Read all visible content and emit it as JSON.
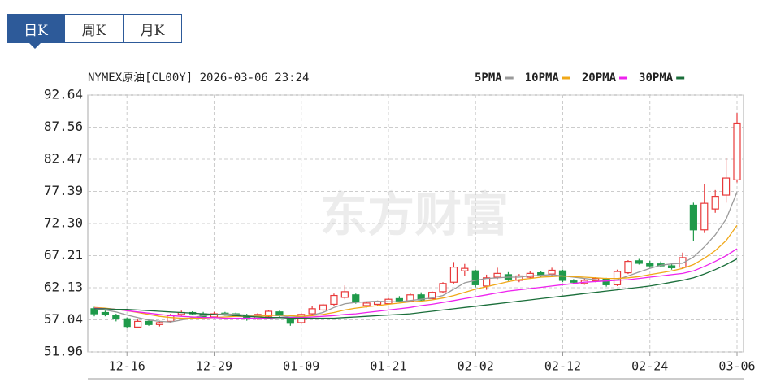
{
  "tabs": [
    "日K",
    "周K",
    "月K"
  ],
  "chart_data": {
    "type": "candlestick",
    "title": "NYMEX原油[CL00Y] 2026-03-06 23:24",
    "watermark": "东方财富",
    "categories": [
      null,
      null,
      null,
      "12-16",
      null,
      null,
      null,
      null,
      null,
      null,
      null,
      "12-29",
      null,
      null,
      null,
      null,
      null,
      null,
      null,
      "01-09",
      null,
      null,
      null,
      null,
      null,
      null,
      null,
      "01-21",
      null,
      null,
      null,
      null,
      null,
      null,
      null,
      "02-02",
      null,
      null,
      null,
      null,
      null,
      null,
      null,
      "02-12",
      null,
      null,
      null,
      null,
      null,
      null,
      null,
      "02-24",
      null,
      null,
      null,
      null,
      null,
      null,
      null,
      "03-06"
    ],
    "open": [
      58.8,
      58.2,
      57.8,
      57.2,
      55.9,
      56.8,
      56.3,
      56.8,
      57.9,
      58.2,
      58.0,
      57.5,
      58.1,
      58.0,
      57.7,
      57.2,
      57.6,
      58.3,
      57.2,
      56.6,
      58.0,
      58.6,
      59.5,
      60.6,
      61.0,
      59.3,
      59.5,
      59.6,
      60.4,
      60.0,
      61.0,
      60.4,
      61.5,
      63.0,
      64.8,
      64.8,
      62.4,
      63.8,
      64.2,
      63.3,
      63.8,
      64.5,
      64.3,
      64.8,
      63.2,
      62.8,
      63.2,
      63.5,
      62.6,
      64.5,
      66.4,
      66.0,
      65.9,
      65.6,
      65.4,
      75.2,
      71.3,
      74.6,
      76.8,
      79.2
    ],
    "high": [
      59.1,
      58.5,
      58.0,
      57.4,
      57.1,
      57.2,
      56.9,
      58.0,
      58.5,
      58.4,
      58.3,
      58.3,
      58.3,
      58.2,
      58.0,
      58.1,
      58.6,
      58.5,
      57.4,
      58.1,
      59.2,
      59.6,
      61.2,
      62.5,
      61.2,
      59.9,
      60.1,
      60.5,
      60.8,
      61.3,
      61.4,
      61.6,
      63.0,
      66.2,
      65.9,
      65.0,
      64.2,
      65.3,
      64.6,
      64.3,
      64.8,
      64.8,
      65.3,
      65.0,
      63.5,
      63.6,
      63.8,
      63.7,
      65.0,
      66.5,
      66.7,
      66.4,
      66.3,
      66.1,
      67.7,
      75.6,
      78.5,
      77.6,
      82.6,
      89.8
    ],
    "low": [
      57.6,
      57.6,
      56.8,
      55.8,
      55.7,
      56.1,
      56.0,
      56.6,
      57.7,
      57.8,
      57.2,
      57.3,
      57.7,
      57.5,
      56.9,
      57.0,
      57.4,
      57.5,
      56.1,
      56.4,
      57.8,
      58.3,
      59.3,
      60.3,
      59.6,
      59.0,
      59.2,
      59.4,
      59.8,
      59.9,
      60.0,
      60.2,
      61.3,
      62.8,
      64.0,
      62.2,
      61.8,
      63.5,
      63.2,
      63.0,
      63.6,
      63.8,
      64.0,
      63.0,
      62.7,
      62.6,
      63.0,
      62.3,
      62.4,
      64.3,
      65.8,
      65.3,
      65.4,
      65.0,
      65.1,
      69.5,
      70.8,
      74.0,
      75.6,
      78.8
    ],
    "close": [
      58.0,
      57.9,
      57.2,
      56.0,
      56.8,
      56.3,
      56.6,
      57.7,
      58.2,
      58.0,
      57.4,
      58.0,
      57.9,
      57.7,
      57.2,
      57.9,
      58.4,
      57.7,
      56.5,
      57.9,
      58.8,
      59.4,
      60.9,
      61.5,
      59.9,
      59.7,
      59.9,
      60.3,
      60.0,
      61.0,
      60.2,
      61.4,
      62.8,
      65.4,
      65.2,
      62.6,
      63.7,
      64.4,
      63.5,
      64.0,
      64.4,
      64.0,
      64.9,
      63.3,
      63.0,
      63.3,
      63.6,
      62.6,
      64.7,
      66.3,
      66.0,
      65.6,
      65.6,
      65.3,
      66.9,
      71.3,
      75.5,
      76.6,
      79.5,
      88.2
    ],
    "up_color": "#e8393a",
    "down_color": "#1f9a4a",
    "series": [
      {
        "name": "5PMA",
        "color": "#9a9a9a",
        "values": [
          58.8,
          58.6,
          58.3,
          57.8,
          57.4,
          57.0,
          56.8,
          56.7,
          57.0,
          57.4,
          57.7,
          57.9,
          58.0,
          57.9,
          57.8,
          57.7,
          57.8,
          57.7,
          57.5,
          57.5,
          57.8,
          58.2,
          59.0,
          59.6,
          59.8,
          59.9,
          60.0,
          59.9,
          59.9,
          60.1,
          60.3,
          60.5,
          60.9,
          61.9,
          62.9,
          63.3,
          63.6,
          63.7,
          63.8,
          63.8,
          64.0,
          64.1,
          64.2,
          64.0,
          63.8,
          63.6,
          63.4,
          63.2,
          63.4,
          64.0,
          64.6,
          65.2,
          65.7,
          65.9,
          66.0,
          67.0,
          68.6,
          70.5,
          73.0,
          77.3
        ]
      },
      {
        "name": "10PMA",
        "color": "#f0a818",
        "values": [
          59.0,
          58.9,
          58.7,
          58.5,
          58.2,
          57.9,
          57.6,
          57.4,
          57.3,
          57.3,
          57.3,
          57.4,
          57.5,
          57.6,
          57.6,
          57.6,
          57.7,
          57.8,
          57.7,
          57.6,
          57.7,
          57.9,
          58.2,
          58.6,
          58.9,
          59.1,
          59.3,
          59.5,
          59.7,
          59.9,
          60.0,
          60.2,
          60.5,
          60.9,
          61.4,
          61.9,
          62.3,
          62.7,
          63.1,
          63.4,
          63.6,
          63.8,
          63.9,
          64.0,
          63.9,
          63.8,
          63.7,
          63.6,
          63.6,
          63.7,
          63.9,
          64.2,
          64.5,
          64.8,
          65.2,
          65.8,
          66.8,
          68.0,
          69.6,
          72.0
        ]
      },
      {
        "name": "20PMA",
        "color": "#ee22ee",
        "values": [
          58.9,
          58.8,
          58.7,
          58.5,
          58.3,
          58.1,
          57.9,
          57.7,
          57.6,
          57.5,
          57.4,
          57.4,
          57.3,
          57.3,
          57.3,
          57.3,
          57.3,
          57.4,
          57.4,
          57.4,
          57.5,
          57.6,
          57.7,
          57.9,
          58.0,
          58.2,
          58.4,
          58.6,
          58.8,
          59.0,
          59.3,
          59.5,
          59.8,
          60.1,
          60.4,
          60.7,
          61.0,
          61.3,
          61.6,
          61.8,
          62.0,
          62.2,
          62.4,
          62.6,
          62.8,
          63.0,
          63.1,
          63.2,
          63.3,
          63.4,
          63.6,
          63.8,
          64.0,
          64.2,
          64.4,
          64.8,
          65.5,
          66.3,
          67.2,
          68.3
        ]
      },
      {
        "name": "30PMA",
        "color": "#1a6e3a",
        "values": [
          58.8,
          58.8,
          58.7,
          58.7,
          58.6,
          58.5,
          58.4,
          58.3,
          58.2,
          58.1,
          58.0,
          57.9,
          57.8,
          57.7,
          57.6,
          57.5,
          57.4,
          57.4,
          57.3,
          57.3,
          57.3,
          57.3,
          57.3,
          57.4,
          57.5,
          57.6,
          57.7,
          57.8,
          57.9,
          58.0,
          58.2,
          58.4,
          58.6,
          58.8,
          59.0,
          59.2,
          59.4,
          59.6,
          59.8,
          60.0,
          60.2,
          60.4,
          60.6,
          60.8,
          61.0,
          61.2,
          61.4,
          61.6,
          61.8,
          62.0,
          62.2,
          62.4,
          62.7,
          63.0,
          63.3,
          63.7,
          64.3,
          65.0,
          65.8,
          66.7
        ]
      }
    ],
    "ylim": [
      51.96,
      92.64
    ],
    "yticks": [
      51.96,
      57.04,
      62.13,
      67.21,
      {
        "value": 72.3,
        "label": "72.30"
      },
      77.39,
      82.47,
      87.56,
      92.64
    ],
    "grid": true
  }
}
